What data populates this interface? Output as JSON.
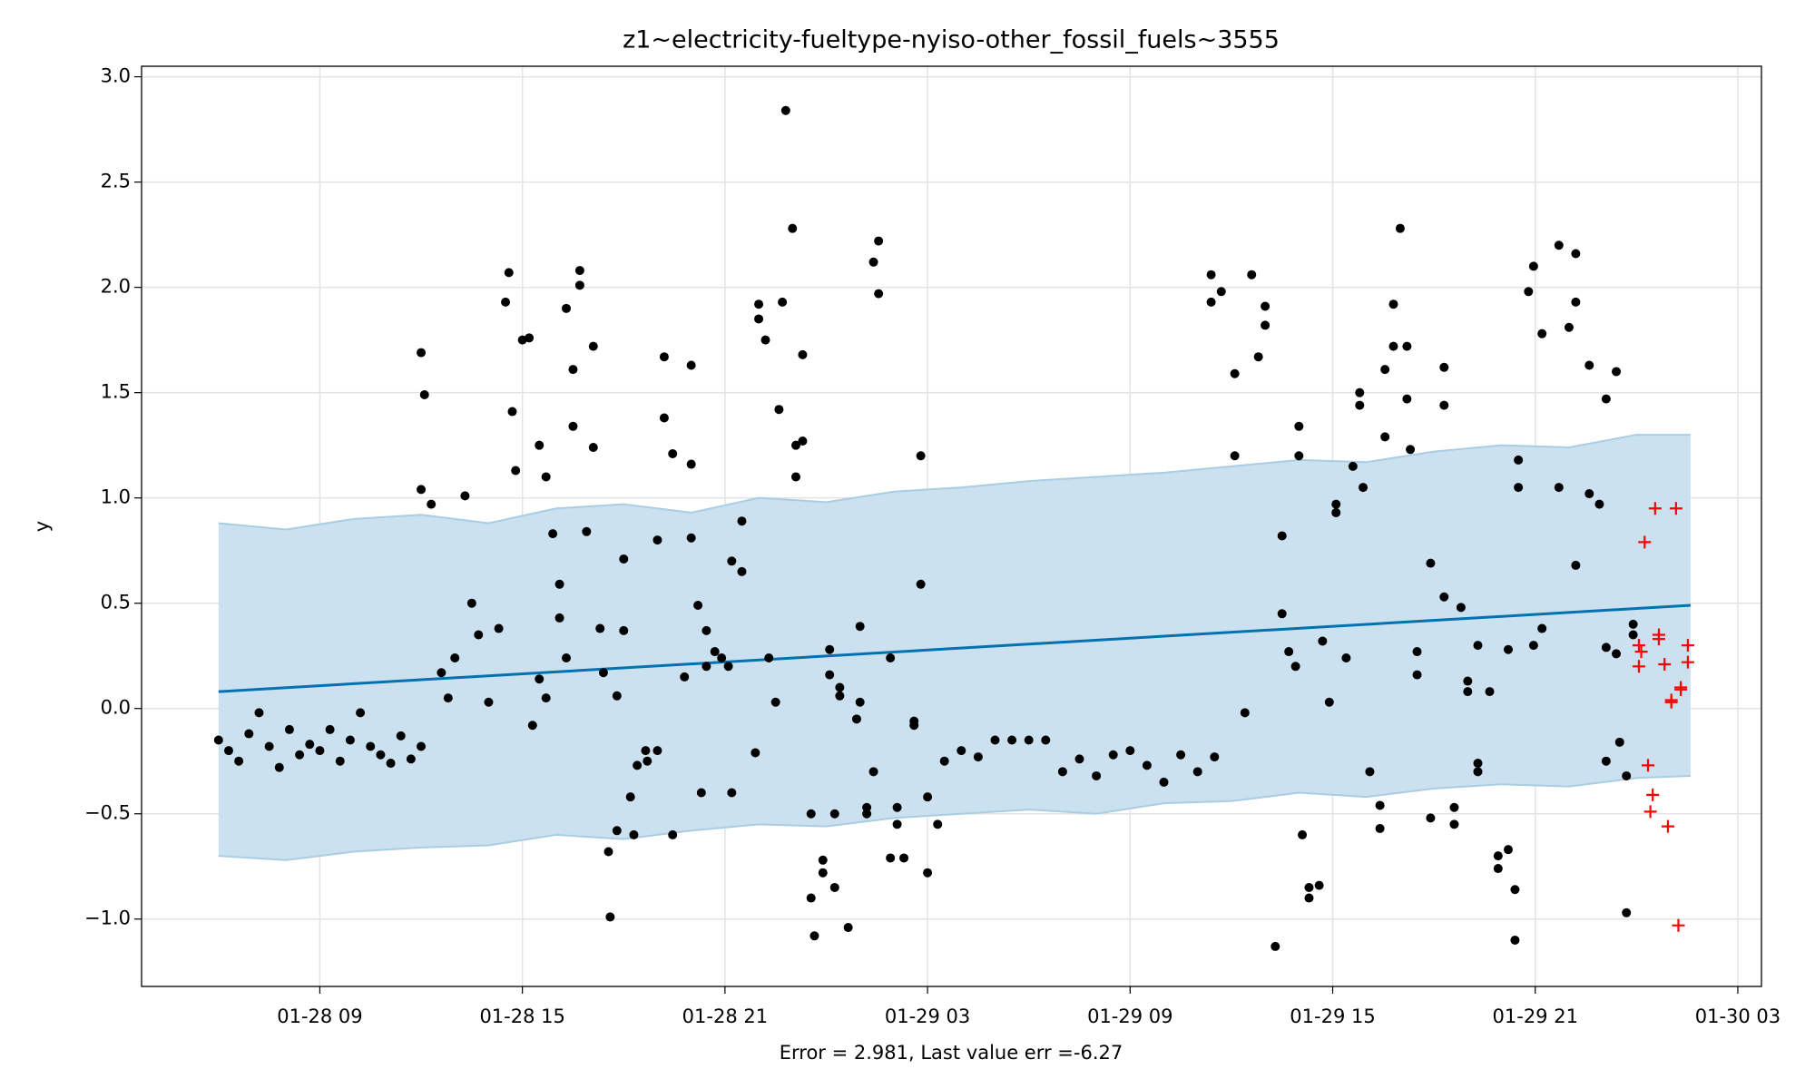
{
  "chart_data": {
    "type": "scatter",
    "title": "z1~electricity-fueltype-nyiso-other_fossil_fuels~3555",
    "xlabel": "Error = 2.981, Last value err =-6.27",
    "ylabel": "y",
    "xlim": [
      3.72,
      51.7
    ],
    "ylim": [
      -1.32,
      3.05
    ],
    "grid": true,
    "xticks": [
      {
        "value": 9,
        "label": "01-28 09"
      },
      {
        "value": 15,
        "label": "01-28 15"
      },
      {
        "value": 21,
        "label": "01-28 21"
      },
      {
        "value": 27,
        "label": "01-29 03"
      },
      {
        "value": 33,
        "label": "01-29 09"
      },
      {
        "value": 39,
        "label": "01-29 15"
      },
      {
        "value": 45,
        "label": "01-29 21"
      },
      {
        "value": 51,
        "label": "01-30 03"
      }
    ],
    "yticks": [
      {
        "value": -1,
        "label": "−1.0"
      },
      {
        "value": -0.5,
        "label": "−0.5"
      },
      {
        "value": 0,
        "label": "0.0"
      },
      {
        "value": 0.5,
        "label": "0.5"
      },
      {
        "value": 1,
        "label": "1.0"
      },
      {
        "value": 1.5,
        "label": "1.5"
      },
      {
        "value": 2,
        "label": "2.0"
      },
      {
        "value": 2.5,
        "label": "2.5"
      },
      {
        "value": 3,
        "label": "3.0"
      }
    ],
    "band": {
      "color": "#cce1ef",
      "edge_color": "#a9cde3",
      "x": [
        6,
        8,
        10,
        12,
        14,
        16,
        18,
        20,
        22,
        24,
        26,
        28,
        30,
        32,
        34,
        36,
        38,
        40,
        42,
        44,
        46,
        48,
        49.6
      ],
      "upper": [
        0.88,
        0.85,
        0.9,
        0.92,
        0.88,
        0.95,
        0.97,
        0.93,
        1.0,
        0.98,
        1.03,
        1.05,
        1.08,
        1.1,
        1.12,
        1.15,
        1.18,
        1.17,
        1.22,
        1.25,
        1.24,
        1.3,
        1.3
      ],
      "lower": [
        -0.7,
        -0.72,
        -0.68,
        -0.66,
        -0.65,
        -0.6,
        -0.62,
        -0.58,
        -0.55,
        -0.56,
        -0.52,
        -0.5,
        -0.48,
        -0.5,
        -0.45,
        -0.44,
        -0.4,
        -0.42,
        -0.38,
        -0.36,
        -0.37,
        -0.33,
        -0.32
      ]
    },
    "forecast": {
      "color": "#0072b2",
      "x": [
        6,
        49.6
      ],
      "values": [
        0.08,
        0.49
      ]
    },
    "actual": {
      "color": "#000000",
      "x": [
        6.0,
        6.3,
        6.6,
        6.9,
        7.2,
        7.5,
        7.8,
        8.1,
        8.4,
        8.7,
        9.0,
        9.3,
        9.6,
        9.9,
        10.2,
        10.5,
        10.8,
        11.1,
        11.4,
        11.7,
        12.0,
        12.0,
        12.1,
        12.0,
        12.3,
        12.6,
        12.8,
        13.0,
        13.3,
        13.5,
        13.7,
        14.0,
        14.3,
        14.5,
        14.6,
        14.7,
        14.8,
        15.0,
        15.2,
        15.3,
        15.5,
        15.5,
        15.7,
        15.7,
        15.9,
        16.1,
        16.1,
        16.3,
        16.3,
        16.5,
        16.5,
        16.7,
        16.7,
        16.9,
        17.1,
        17.1,
        17.3,
        17.4,
        17.55,
        17.6,
        17.8,
        17.8,
        18.0,
        18.0,
        18.2,
        18.3,
        18.4,
        18.65,
        18.7,
        19.0,
        19.0,
        19.2,
        19.2,
        19.45,
        19.45,
        19.8,
        20.0,
        20.0,
        20.0,
        20.2,
        20.3,
        20.45,
        20.45,
        20.7,
        20.9,
        21.1,
        21.2,
        21.2,
        21.5,
        21.5,
        21.9,
        22.0,
        22.0,
        22.2,
        22.3,
        22.5,
        22.6,
        22.7,
        22.8,
        23.0,
        23.1,
        23.1,
        23.3,
        23.3,
        23.55,
        23.55,
        23.65,
        23.9,
        23.9,
        24.1,
        24.1,
        24.25,
        24.25,
        24.4,
        24.4,
        24.65,
        24.9,
        25.0,
        25.0,
        25.2,
        25.2,
        25.4,
        25.4,
        25.55,
        25.55,
        25.9,
        25.9,
        26.1,
        26.1,
        26.3,
        26.6,
        26.6,
        26.8,
        26.8,
        27.0,
        27.0,
        27.3,
        27.5,
        28.0,
        28.5,
        29.0,
        29.5,
        30.0,
        30.5,
        31.0,
        31.5,
        32.0,
        32.5,
        33.0,
        33.5,
        34.0,
        34.5,
        35.0,
        35.5,
        35.4,
        35.4,
        35.7,
        36.1,
        36.1,
        36.4,
        36.6,
        36.8,
        37.0,
        37.0,
        37.3,
        37.5,
        37.5,
        37.7,
        37.9,
        38.0,
        38.0,
        38.1,
        38.3,
        38.3,
        38.6,
        38.7,
        38.9,
        39.1,
        39.1,
        39.4,
        39.6,
        39.8,
        39.8,
        39.9,
        40.1,
        40.4,
        40.4,
        40.55,
        40.55,
        40.8,
        40.8,
        41.0,
        41.2,
        41.2,
        41.3,
        41.5,
        41.5,
        41.9,
        41.9,
        42.3,
        42.3,
        42.3,
        42.6,
        42.6,
        42.8,
        43.0,
        43.0,
        43.3,
        43.3,
        43.3,
        43.65,
        43.9,
        43.9,
        44.2,
        44.2,
        44.4,
        44.4,
        44.5,
        44.5,
        44.8,
        44.95,
        44.95,
        45.2,
        45.2,
        45.7,
        45.7,
        46.0,
        46.2,
        46.2,
        46.2,
        46.6,
        46.6,
        46.9,
        47.1,
        47.1,
        47.1,
        47.4,
        47.4,
        47.5,
        47.7,
        47.7,
        47.9,
        47.9
      ],
      "values": [
        -0.15,
        -0.2,
        -0.25,
        -0.12,
        -0.02,
        -0.18,
        -0.28,
        -0.1,
        -0.22,
        -0.17,
        -0.2,
        -0.1,
        -0.25,
        -0.15,
        -0.02,
        -0.18,
        -0.22,
        -0.26,
        -0.13,
        -0.24,
        -0.18,
        1.69,
        1.49,
        1.04,
        0.97,
        0.17,
        0.05,
        0.24,
        1.01,
        0.5,
        0.35,
        0.03,
        0.38,
        1.93,
        2.07,
        1.41,
        1.13,
        1.75,
        1.76,
        -0.08,
        0.14,
        1.25,
        0.05,
        1.1,
        0.83,
        0.43,
        0.59,
        1.9,
        0.24,
        1.34,
        1.61,
        2.08,
        2.01,
        0.84,
        1.72,
        1.24,
        0.38,
        0.17,
        -0.68,
        -0.99,
        -0.58,
        0.06,
        0.71,
        0.37,
        -0.42,
        -0.6,
        -0.27,
        -0.2,
        -0.25,
        0.8,
        -0.2,
        1.38,
        1.67,
        1.21,
        -0.6,
        0.15,
        1.63,
        1.16,
        0.81,
        0.49,
        -0.4,
        0.37,
        0.2,
        0.27,
        0.24,
        0.2,
        0.7,
        -0.4,
        0.89,
        0.65,
        -0.21,
        1.85,
        1.92,
        1.75,
        0.24,
        0.03,
        1.42,
        1.93,
        2.84,
        2.28,
        1.25,
        1.1,
        1.68,
        1.27,
        -0.9,
        -0.5,
        -1.08,
        -0.72,
        -0.78,
        0.16,
        0.28,
        -0.5,
        -0.85,
        0.06,
        0.1,
        -1.04,
        -0.05,
        0.03,
        0.39,
        -0.47,
        -0.5,
        -0.3,
        2.12,
        1.97,
        2.22,
        -0.71,
        0.24,
        -0.47,
        -0.55,
        -0.71,
        -0.08,
        -0.06,
        1.2,
        0.59,
        -0.42,
        -0.78,
        -0.55,
        -0.25,
        -0.2,
        -0.23,
        -0.15,
        -0.15,
        -0.15,
        -0.15,
        -0.3,
        -0.24,
        -0.32,
        -0.22,
        -0.2,
        -0.27,
        -0.35,
        -0.22,
        -0.3,
        -0.23,
        2.06,
        1.93,
        1.98,
        1.59,
        1.2,
        -0.02,
        2.06,
        1.67,
        1.91,
        1.82,
        -1.13,
        0.82,
        0.45,
        0.27,
        0.2,
        1.34,
        1.2,
        -0.6,
        -0.85,
        -0.9,
        -0.84,
        0.32,
        0.03,
        0.97,
        0.93,
        0.24,
        1.15,
        1.5,
        1.44,
        1.05,
        -0.3,
        -0.57,
        -0.46,
        1.61,
        1.29,
        1.72,
        1.92,
        2.28,
        1.47,
        1.72,
        1.23,
        0.27,
        0.16,
        -0.52,
        0.69,
        1.62,
        1.44,
        0.53,
        -0.55,
        -0.47,
        0.48,
        0.13,
        0.08,
        -0.26,
        -0.3,
        0.3,
        0.08,
        -0.7,
        -0.76,
        0.28,
        -0.67,
        -0.86,
        -1.1,
        1.18,
        1.05,
        1.98,
        0.3,
        2.1,
        1.78,
        0.38,
        1.05,
        2.2,
        1.81,
        0.68,
        2.16,
        1.93,
        1.63,
        1.02,
        0.97,
        1.47,
        -0.25,
        0.29,
        1.6,
        0.26,
        -0.16,
        -0.97,
        -0.32,
        0.35,
        0.4
      ]
    },
    "test": {
      "color": "#ff0000",
      "marker": "+",
      "x": [
        48.07,
        48.07,
        48.14,
        48.24,
        48.34,
        48.41,
        48.48,
        48.55,
        48.66,
        48.66,
        48.83,
        48.93,
        49.03,
        49.03,
        49.17,
        49.24,
        49.31,
        49.31,
        49.52,
        49.52
      ],
      "values": [
        0.2,
        0.3,
        0.27,
        0.79,
        -0.27,
        -0.49,
        -0.41,
        0.95,
        0.35,
        0.33,
        0.21,
        -0.56,
        0.03,
        0.04,
        0.95,
        -1.03,
        0.09,
        0.1,
        0.3,
        0.22
      ]
    }
  }
}
